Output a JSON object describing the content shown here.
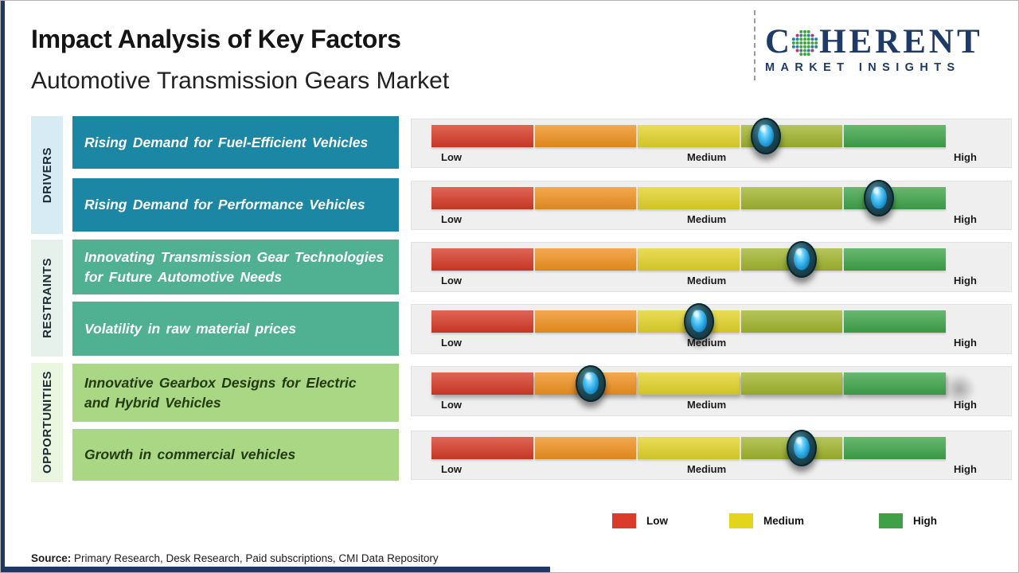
{
  "header": {
    "title": "Impact Analysis of Key Factors",
    "subtitle": "Automotive Transmission Gears Market"
  },
  "logo": {
    "brand_c": "C",
    "brand_rest": "HERENT",
    "brand_sub": "MARKET INSIGHTS"
  },
  "groups": [
    {
      "label": "DRIVERS"
    },
    {
      "label": "RESTRAINTS"
    },
    {
      "label": "OPPORTUNITIES"
    }
  ],
  "scale": {
    "low": "Low",
    "medium": "Medium",
    "high": "High"
  },
  "rows": [
    {
      "group": "DRIVERS",
      "label": "Rising Demand for Fuel-Efficient Vehicles",
      "marker_percent": 65
    },
    {
      "group": "DRIVERS",
      "label": "Rising Demand for Performance Vehicles",
      "marker_percent": 87
    },
    {
      "group": "RESTRAINTS",
      "label": "Innovating Transmission Gear Technologies for Future Automotive Needs",
      "marker_percent": 72
    },
    {
      "group": "RESTRAINTS",
      "label": "Volatility in raw material prices",
      "marker_percent": 52
    },
    {
      "group": "OPPORTUNITIES",
      "label": "Innovative Gearbox Designs for Electric and Hybrid Vehicles",
      "marker_percent": 31
    },
    {
      "group": "OPPORTUNITIES",
      "label": "Growth in commercial vehicles",
      "marker_percent": 72
    }
  ],
  "chart_data": {
    "type": "rating_scale",
    "title": "Impact Analysis of Key Factors",
    "subtitle": "Automotive Transmission Gears Market",
    "scale_labels": [
      "Low",
      "Medium",
      "High"
    ],
    "scale_range_percent": [
      0,
      100
    ],
    "segments_per_bar": 5,
    "categories": [
      "Rising Demand for Fuel-Efficient Vehicles",
      "Rising Demand for Performance Vehicles",
      "Innovating Transmission Gear Technologies for Future Automotive Needs",
      "Volatility in raw material prices",
      "Innovative Gearbox Designs for Electric and Hybrid Vehicles",
      "Growth in commercial vehicles"
    ],
    "category_groups": [
      "DRIVERS",
      "DRIVERS",
      "RESTRAINTS",
      "RESTRAINTS",
      "OPPORTUNITIES",
      "OPPORTUNITIES"
    ],
    "values_percent": [
      65,
      87,
      72,
      52,
      31,
      72
    ],
    "legend_entries": [
      "Low",
      "Medium",
      "High"
    ],
    "legend_position": "bottom-right"
  },
  "legend": [
    {
      "label": "Low",
      "color": "#da3b2a"
    },
    {
      "label": "Medium",
      "color": "#e5d41c"
    },
    {
      "label": "High",
      "color": "#3fa047"
    }
  ],
  "source": {
    "prefix": "Source:",
    "text": " Primary Research, Desk Research, Paid subscriptions, CMI Data Repository"
  },
  "colors": {
    "brand_navy": "#1f3864",
    "bar_segments": [
      "#d63a26",
      "#f0911f",
      "#e2d32a",
      "#a1b52d",
      "#3ea449"
    ],
    "driver_box": "#1b87a5",
    "restraint_box": "#4fb092",
    "opportunity_box": "#a9d783",
    "driver_tab": "#d7ebf4",
    "restraint_tab": "#e7f1ec",
    "opportunity_tab": "#ebf6e0"
  }
}
